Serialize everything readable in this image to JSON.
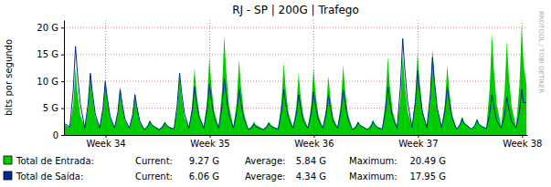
{
  "chart_data": {
    "type": "line",
    "title": "RJ - SP | 200G | Trafego",
    "y_label": "bits por segundo",
    "annotations": [
      "RRDTOOL / TOBI OETIKER"
    ],
    "grid": true,
    "legend": "bottom",
    "xlim": [
      33.6,
      38.05
    ],
    "xticks": [
      {
        "value": 34,
        "label": "Week 34"
      },
      {
        "value": 35,
        "label": "Week 35"
      },
      {
        "value": 36,
        "label": "Week 36"
      },
      {
        "value": 37,
        "label": "Week 37"
      },
      {
        "value": 38,
        "label": "Week 38"
      }
    ],
    "ylim": [
      0,
      21.4
    ],
    "yticks": [
      0,
      {
        "value": 5,
        "label": "5 G"
      },
      {
        "value": 10,
        "label": "10 G"
      },
      {
        "value": 15,
        "label": "15 G"
      },
      {
        "value": 20,
        "label": "20 G"
      }
    ],
    "stat_names": [
      "Current:",
      "Average:",
      "Maximum:"
    ],
    "x": [
      33.6,
      33.657,
      33.689,
      33.711,
      33.729,
      33.757,
      33.8,
      33.832,
      33.854,
      33.872,
      33.9,
      33.943,
      33.975,
      33.997,
      34.015,
      34.043,
      34.086,
      34.118,
      34.14,
      34.158,
      34.185,
      34.228,
      34.26,
      34.282,
      34.3,
      34.328,
      34.371,
      34.403,
      34.425,
      34.443,
      34.471,
      34.514,
      34.546,
      34.568,
      34.586,
      34.614,
      34.657,
      34.689,
      34.711,
      34.729,
      34.757,
      34.8,
      34.832,
      34.854,
      34.872,
      34.9,
      34.943,
      34.975,
      34.997,
      35.015,
      35.043,
      35.086,
      35.118,
      35.14,
      35.158,
      35.185,
      35.228,
      35.26,
      35.282,
      35.3,
      35.328,
      35.371,
      35.403,
      35.425,
      35.443,
      35.471,
      35.514,
      35.546,
      35.568,
      35.586,
      35.614,
      35.657,
      35.689,
      35.711,
      35.729,
      35.757,
      35.8,
      35.832,
      35.854,
      35.872,
      35.9,
      35.943,
      35.975,
      35.997,
      36.015,
      36.043,
      36.086,
      36.118,
      36.14,
      36.158,
      36.185,
      36.228,
      36.26,
      36.282,
      36.3,
      36.328,
      36.371,
      36.403,
      36.425,
      36.443,
      36.471,
      36.514,
      36.546,
      36.568,
      36.586,
      36.614,
      36.657,
      36.689,
      36.711,
      36.729,
      36.757,
      36.8,
      36.832,
      36.854,
      36.872,
      36.9,
      36.943,
      36.975,
      36.997,
      37.015,
      37.043,
      37.086,
      37.118,
      37.14,
      37.158,
      37.185,
      37.228,
      37.26,
      37.282,
      37.3,
      37.328,
      37.371,
      37.403,
      37.425,
      37.443,
      37.471,
      37.514,
      37.546,
      37.568,
      37.586,
      37.614,
      37.657,
      37.689,
      37.711,
      37.729,
      37.757,
      37.8,
      37.832,
      37.854,
      37.872,
      37.9,
      37.943,
      37.975,
      37.997,
      38.015,
      38.043
    ],
    "series": [
      {
        "name": "Total de Entrada:",
        "type": "area",
        "color": "#00cc00",
        "stats": [
          "9.27 G",
          "5.84 G",
          "20.49 G"
        ],
        "values": [
          2.0,
          1.4,
          5.6,
          12.5,
          8.1,
          3.8,
          1.4,
          5.2,
          11.5,
          7.5,
          3.5,
          1.4,
          4.7,
          10.5,
          6.8,
          3.2,
          1.4,
          4.1,
          9,
          5.9,
          2.7,
          1.4,
          3.6,
          8,
          5.2,
          2.4,
          1.1,
          1.8,
          2.8,
          2.0,
          1.6,
          1.1,
          1.7,
          2.5,
          1.9,
          1.5,
          1.2,
          5.0,
          11,
          7.2,
          3.3,
          1.4,
          5.6,
          12.5,
          8.1,
          3.8,
          1.4,
          6.5,
          14.5,
          9.4,
          4.4,
          1.5,
          8.3,
          18.5,
          12.0,
          5.6,
          1.5,
          6.3,
          14,
          9.1,
          4.2,
          1.1,
          1.7,
          2.5,
          1.9,
          1.6,
          1.1,
          1.7,
          2.5,
          1.9,
          1.5,
          1.2,
          6.1,
          13.5,
          8.8,
          4.1,
          1.4,
          5.2,
          11.5,
          7.5,
          3.5,
          1.4,
          5.6,
          12.5,
          8.1,
          3.8,
          1.4,
          5.0,
          11,
          7.2,
          3.3,
          1.4,
          5.9,
          13,
          8.5,
          3.9,
          1.1,
          1.7,
          2.6,
          1.9,
          1.6,
          1.1,
          1.8,
          2.8,
          2.0,
          1.5,
          1.2,
          6.5,
          14.5,
          9.4,
          4.4,
          1.5,
          6.8,
          15,
          9.8,
          4.5,
          1.5,
          7.0,
          15.5,
          10.1,
          4.7,
          1.5,
          7.2,
          16,
          10.4,
          4.8,
          1.5,
          5.9,
          13,
          8.5,
          3.9,
          1.2,
          2.1,
          3.5,
          2.4,
          1.8,
          1.2,
          1.9,
          3,
          2.1,
          1.6,
          1.3,
          8.6,
          19,
          12.4,
          5.7,
          1.6,
          7.9,
          17.5,
          11.4,
          5.3,
          1.6,
          9.2,
          20.49,
          13.3,
          9.27
        ]
      },
      {
        "name": "Total de Saída:",
        "type": "line",
        "color": "#002a97",
        "stats": [
          "6.06 G",
          "4.34 G",
          "17.95 G"
        ],
        "values": [
          2.2,
          1.5,
          8.3,
          16.5,
          11.6,
          5.8,
          1.3,
          5.8,
          11.5,
          8.1,
          4.0,
          1.3,
          5.0,
          10,
          7.0,
          3.5,
          1.3,
          4.3,
          8.5,
          6.0,
          3.0,
          1.3,
          3.8,
          7.5,
          5.3,
          2.6,
          1.0,
          1.5,
          2.5,
          1.9,
          1.5,
          1.0,
          1.4,
          2.3,
          1.8,
          1.4,
          1.1,
          5.8,
          11.5,
          8.1,
          4.0,
          1.3,
          4.5,
          9,
          6.3,
          3.2,
          1.3,
          4.8,
          9.5,
          6.7,
          3.3,
          1.3,
          5.3,
          10.5,
          7.4,
          3.7,
          1.3,
          4.3,
          8.5,
          6.0,
          3.0,
          1.0,
          1.3,
          2,
          1.6,
          1.3,
          1.0,
          1.4,
          2.2,
          1.7,
          1.4,
          1.1,
          4.3,
          8.5,
          6.0,
          3.0,
          1.3,
          3.8,
          7.5,
          5.3,
          2.6,
          1.3,
          4.0,
          8,
          5.6,
          2.8,
          1.3,
          3.8,
          7.5,
          5.3,
          2.6,
          1.3,
          4.3,
          8.5,
          6.0,
          3.0,
          1.0,
          1.4,
          2.3,
          1.8,
          1.5,
          1.0,
          1.5,
          2.5,
          1.9,
          1.4,
          1.1,
          4.5,
          9,
          6.3,
          3.2,
          1.3,
          9.0,
          17.95,
          12.6,
          6.3,
          1.4,
          6.0,
          12,
          8.4,
          4.2,
          1.4,
          7.3,
          14.5,
          10.2,
          5.1,
          1.4,
          4.5,
          9,
          6.3,
          3.2,
          1.1,
          1.8,
          3,
          2.2,
          1.8,
          1.1,
          1.7,
          2.8,
          2.0,
          1.6,
          1.2,
          3.8,
          7.5,
          5.3,
          2.6,
          1.3,
          3.5,
          7,
          4.9,
          2.5,
          1.3,
          4.3,
          8.5,
          6.0,
          6.06
        ]
      }
    ]
  }
}
